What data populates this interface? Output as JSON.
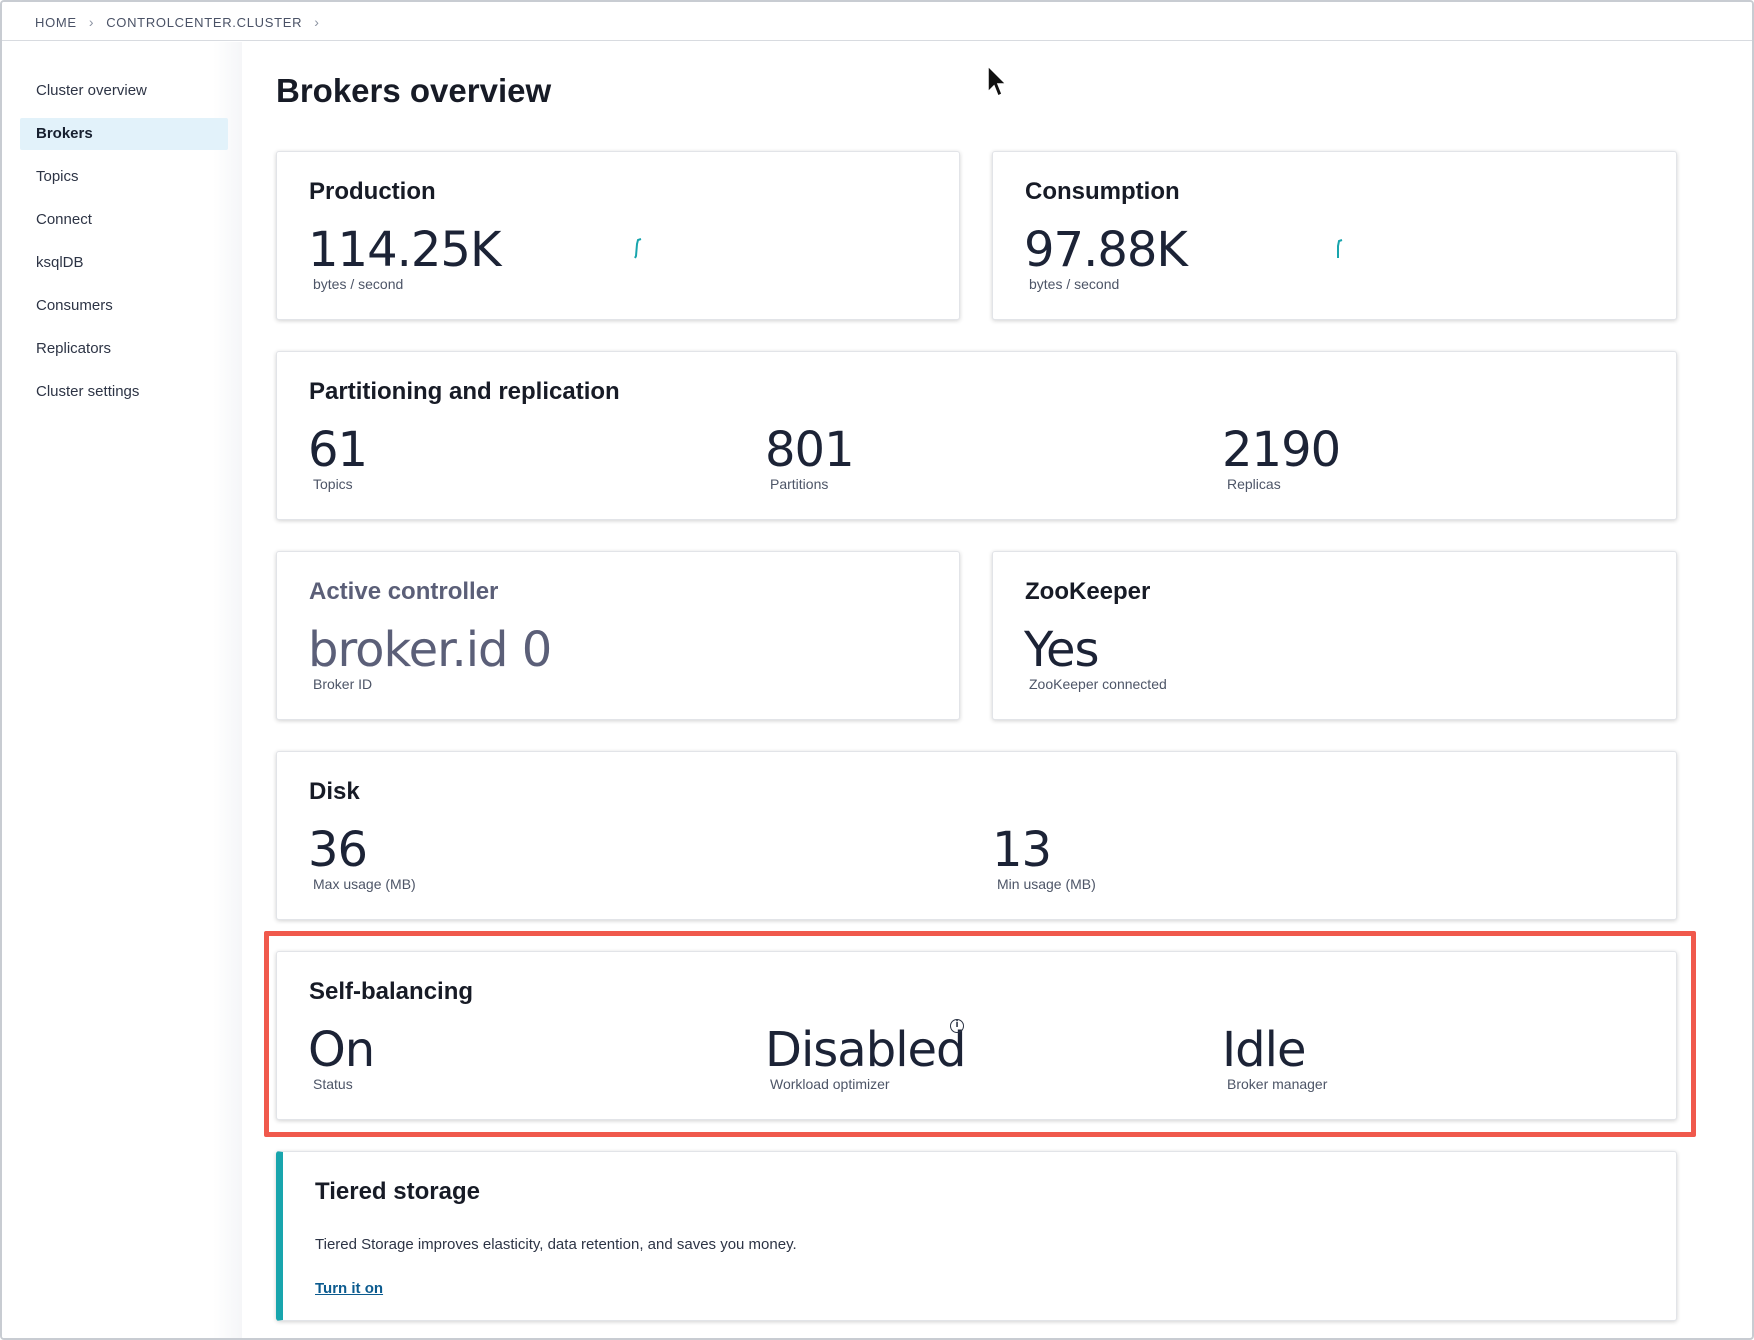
{
  "breadcrumb": {
    "home": "HOME",
    "cluster": "CONTROLCENTER.CLUSTER",
    "separator": "›"
  },
  "sidebar": {
    "items": [
      {
        "label": "Cluster overview",
        "active": false
      },
      {
        "label": "Brokers",
        "active": true
      },
      {
        "label": "Topics",
        "active": false
      },
      {
        "label": "Connect",
        "active": false
      },
      {
        "label": "ksqlDB",
        "active": false
      },
      {
        "label": "Consumers",
        "active": false
      },
      {
        "label": "Replicators",
        "active": false
      },
      {
        "label": "Cluster settings",
        "active": false
      }
    ]
  },
  "page": {
    "title": "Brokers overview"
  },
  "production": {
    "title": "Production",
    "value": "114.25K",
    "unit": "bytes / second"
  },
  "consumption": {
    "title": "Consumption",
    "value": "97.88K",
    "unit": "bytes / second"
  },
  "partitioning": {
    "title": "Partitioning and replication",
    "topics_value": "61",
    "topics_label": "Topics",
    "partitions_value": "801",
    "partitions_label": "Partitions",
    "replicas_value": "2190",
    "replicas_label": "Replicas"
  },
  "controller": {
    "title": "Active controller",
    "value": "broker.id 0",
    "label": "Broker ID"
  },
  "zookeeper": {
    "title": "ZooKeeper",
    "value": "Yes",
    "label": "ZooKeeper connected"
  },
  "disk": {
    "title": "Disk",
    "max_value": "36",
    "max_label": "Max usage (MB)",
    "min_value": "13",
    "min_label": "Min usage (MB)"
  },
  "self_balancing": {
    "title": "Self-balancing",
    "status_value": "On",
    "status_label": "Status",
    "optimizer_value": "Disabled",
    "optimizer_label": "Workload optimizer",
    "manager_value": "Idle",
    "manager_label": "Broker manager",
    "info_icon": "i"
  },
  "tiered": {
    "title": "Tiered storage",
    "description": "Tiered Storage improves elasticity, data retention, and saves you money.",
    "link": "Turn it on"
  },
  "colors": {
    "accent": "#18a5ad",
    "highlight": "#f0594c",
    "active_nav": "#e2f2fa",
    "link": "#0c5b8f"
  }
}
